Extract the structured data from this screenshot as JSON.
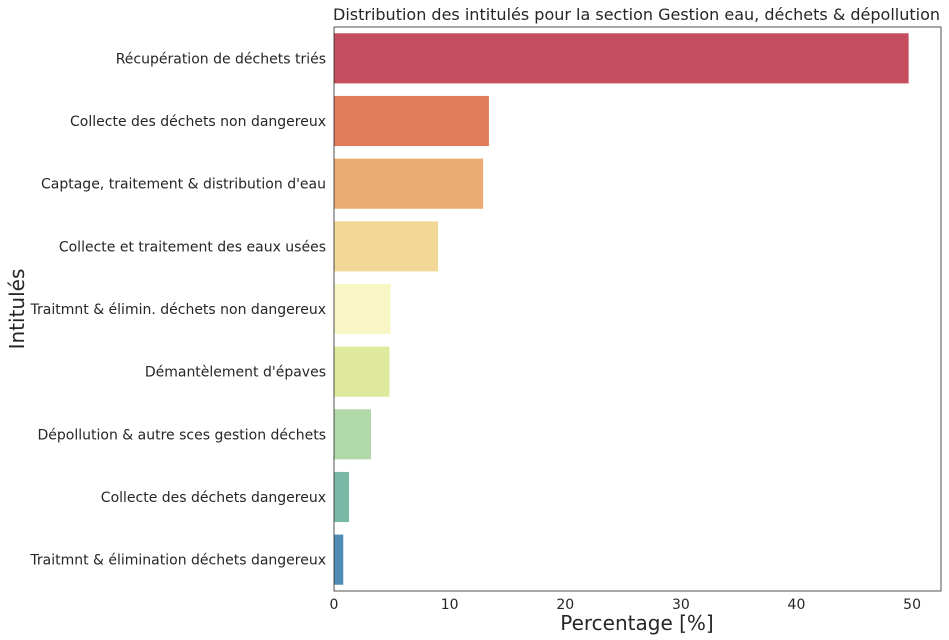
{
  "chart_data": {
    "type": "bar",
    "orientation": "horizontal",
    "title": "Distribution des intitulés pour la section Gestion eau, déchets & dépollution",
    "xlabel": "Percentage [%]",
    "ylabel": "Intitulés",
    "xlim": [
      0,
      52.5
    ],
    "xticks": [
      0,
      10,
      20,
      30,
      40,
      50
    ],
    "grid": false,
    "categories": [
      "Récupération de déchets triés",
      "Collecte des déchets non dangereux",
      "Captage, traitement & distribution d'eau",
      "Collecte et traitement des eaux usées",
      "Traitmnt & élimin. déchets non dangereux",
      "Démantèlement d'épaves",
      "Dépollution & autre sces gestion déchets",
      "Collecte des déchets dangereux",
      "Traitmnt & élimination déchets dangereux"
    ],
    "values": [
      49.7,
      13.4,
      12.9,
      9.0,
      4.9,
      4.8,
      3.2,
      1.3,
      0.8
    ],
    "colors": [
      "#c44e5e",
      "#e07b5b",
      "#eaac72",
      "#f1d896",
      "#f7f6c4",
      "#dfe99e",
      "#b0d8a9",
      "#78b8a4",
      "#4f8cb7"
    ]
  }
}
